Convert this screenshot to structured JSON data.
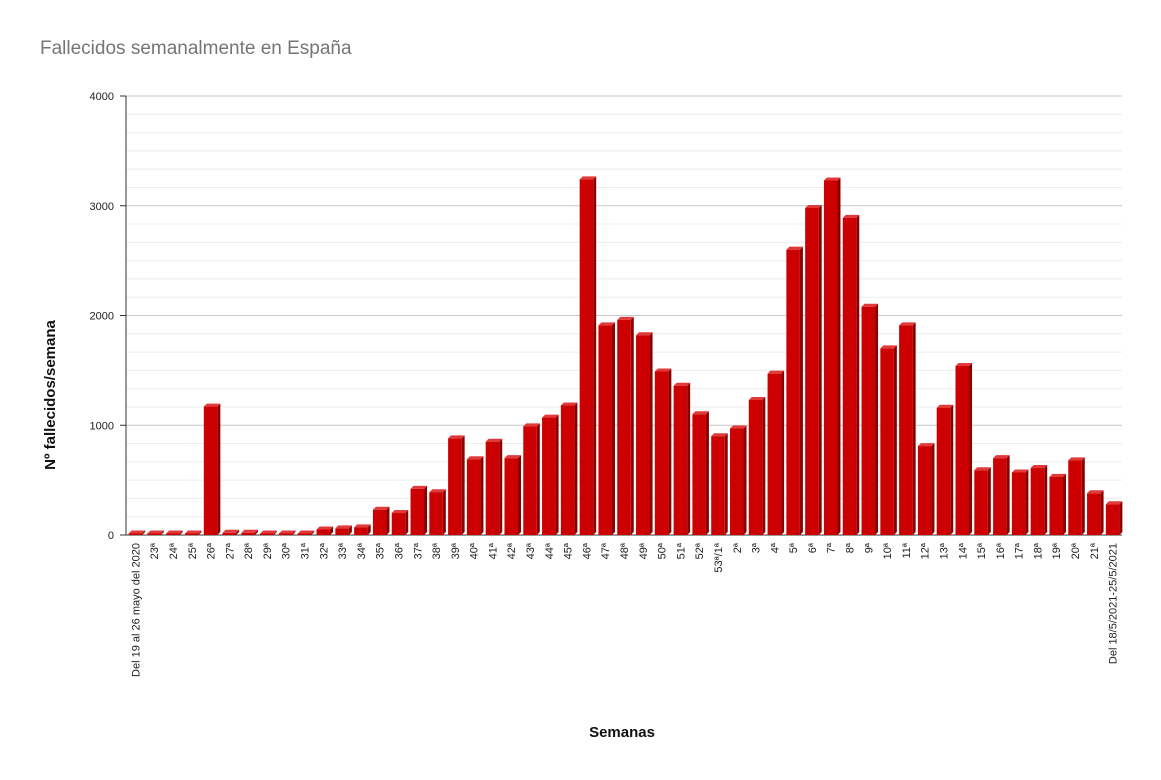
{
  "chart_data": {
    "type": "bar",
    "title": "Fallecidos semanalmente en España",
    "xlabel": "Semanas",
    "ylabel": "Nº fallecidos/semana",
    "ylim": [
      0,
      4000
    ],
    "yticks": [
      0,
      1000,
      2000,
      3000,
      4000
    ],
    "grid": true,
    "bar_color": "#cc0000",
    "categories": [
      "Del 19 al 26 mayo del 2020",
      "23ª",
      "24ª",
      "25ª",
      "26ª",
      "27ª",
      "28ª",
      "29ª",
      "30ª",
      "31ª",
      "32ª",
      "33ª",
      "34ª",
      "35ª",
      "36ª",
      "37ª",
      "38ª",
      "39ª",
      "40ª",
      "41ª",
      "42ª",
      "43ª",
      "44ª",
      "45ª",
      "46ª",
      "47ª",
      "48ª",
      "49ª",
      "50ª",
      "51ª",
      "52ª",
      "53ª/1ª",
      "2ª",
      "3ª",
      "4ª",
      "5ª",
      "6ª",
      "7ª",
      "8ª",
      "9ª",
      "10ª",
      "11ª",
      "12ª",
      "13ª",
      "14ª",
      "15ª",
      "16ª",
      "17ª",
      "18ª",
      "19ª",
      "20ª",
      "21ª",
      "Del 18/5/2021-25/5/2021"
    ],
    "values": [
      0,
      0,
      0,
      0,
      1170,
      20,
      20,
      5,
      5,
      5,
      50,
      60,
      70,
      230,
      200,
      420,
      390,
      880,
      690,
      850,
      700,
      990,
      1070,
      1180,
      3240,
      1910,
      1960,
      1820,
      1490,
      1360,
      1100,
      900,
      970,
      1230,
      1470,
      2600,
      2980,
      3230,
      2890,
      2080,
      1700,
      1910,
      810,
      1160,
      1540,
      590,
      700,
      570,
      610,
      530,
      680,
      380,
      280
    ]
  }
}
